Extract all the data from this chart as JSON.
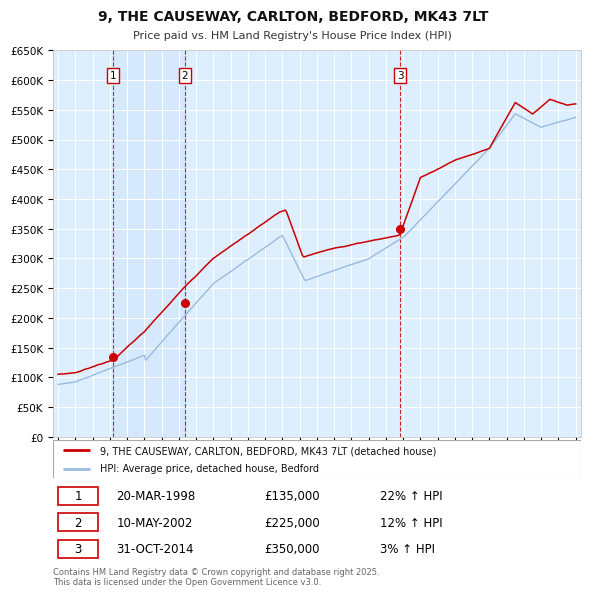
{
  "title": "9, THE CAUSEWAY, CARLTON, BEDFORD, MK43 7LT",
  "subtitle": "Price paid vs. HM Land Registry's House Price Index (HPI)",
  "background_color": "#ffffff",
  "plot_bg_color": "#ddeeff",
  "grid_color": "#ffffff",
  "red_line_color": "#cc0000",
  "blue_line_color": "#99bbdd",
  "vline_color": "#cc0000",
  "ylim": [
    0,
    650000
  ],
  "yticks": [
    0,
    50000,
    100000,
    150000,
    200000,
    250000,
    300000,
    350000,
    400000,
    450000,
    500000,
    550000,
    600000,
    650000
  ],
  "x_start_year": 1995,
  "x_end_year": 2025,
  "sale1_year": 1998.21,
  "sale1_price": 135000,
  "sale1_label": "1",
  "sale2_year": 2002.36,
  "sale2_price": 225000,
  "sale2_label": "2",
  "sale3_year": 2014.83,
  "sale3_price": 350000,
  "sale3_label": "3",
  "legend_red_label": "9, THE CAUSEWAY, CARLTON, BEDFORD, MK43 7LT (detached house)",
  "legend_blue_label": "HPI: Average price, detached house, Bedford",
  "table_rows": [
    {
      "num": "1",
      "date": "20-MAR-1998",
      "price": "£135,000",
      "pct": "22% ↑ HPI"
    },
    {
      "num": "2",
      "date": "10-MAY-2002",
      "price": "£225,000",
      "pct": "12% ↑ HPI"
    },
    {
      "num": "3",
      "date": "31-OCT-2014",
      "price": "£350,000",
      "pct": "3% ↑ HPI"
    }
  ],
  "footer": "Contains HM Land Registry data © Crown copyright and database right 2025.\nThis data is licensed under the Open Government Licence v3.0."
}
